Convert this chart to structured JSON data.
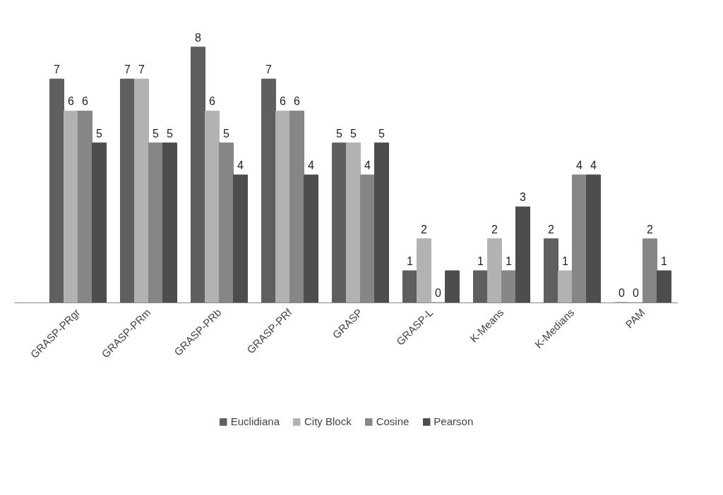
{
  "chart_data": {
    "type": "bar",
    "categories": [
      "GRASP-PRgr",
      "GRASP-PRm",
      "GRASP-PRb",
      "GRASP-PRf",
      "GRASP",
      "GRASP-L",
      "K-Means",
      "K-Medians",
      "PAM"
    ],
    "series": [
      {
        "name": "Euclidiana",
        "color": "#5f5f5f",
        "values": [
          7,
          7,
          8,
          7,
          5,
          1,
          1,
          2,
          0
        ],
        "value_labels": [
          "7",
          "7",
          "8",
          "7",
          "5",
          "1",
          "1",
          "2",
          "0"
        ]
      },
      {
        "name": "City Block",
        "color": "#b2b2b2",
        "values": [
          6,
          7,
          6,
          6,
          5,
          2,
          2,
          1,
          0
        ],
        "value_labels": [
          "6",
          "7",
          "6",
          "6",
          "5",
          "2",
          "2",
          "1",
          "0"
        ]
      },
      {
        "name": "Cosine",
        "color": "#868686",
        "values": [
          6,
          5,
          5,
          6,
          4,
          0,
          1,
          4,
          2
        ],
        "value_labels": [
          "6",
          "5",
          "5",
          "6",
          "4",
          "0",
          "1",
          "4",
          "2"
        ]
      },
      {
        "name": "Pearson",
        "color": "#4d4d4d",
        "values": [
          5,
          5,
          4,
          4,
          5,
          1,
          3,
          4,
          1
        ],
        "value_labels": [
          "5",
          "5",
          "4",
          "4",
          "5",
          null,
          "3",
          "4",
          "1"
        ]
      }
    ],
    "tick_labels": "x",
    "grid": false,
    "legend": "bottom"
  }
}
